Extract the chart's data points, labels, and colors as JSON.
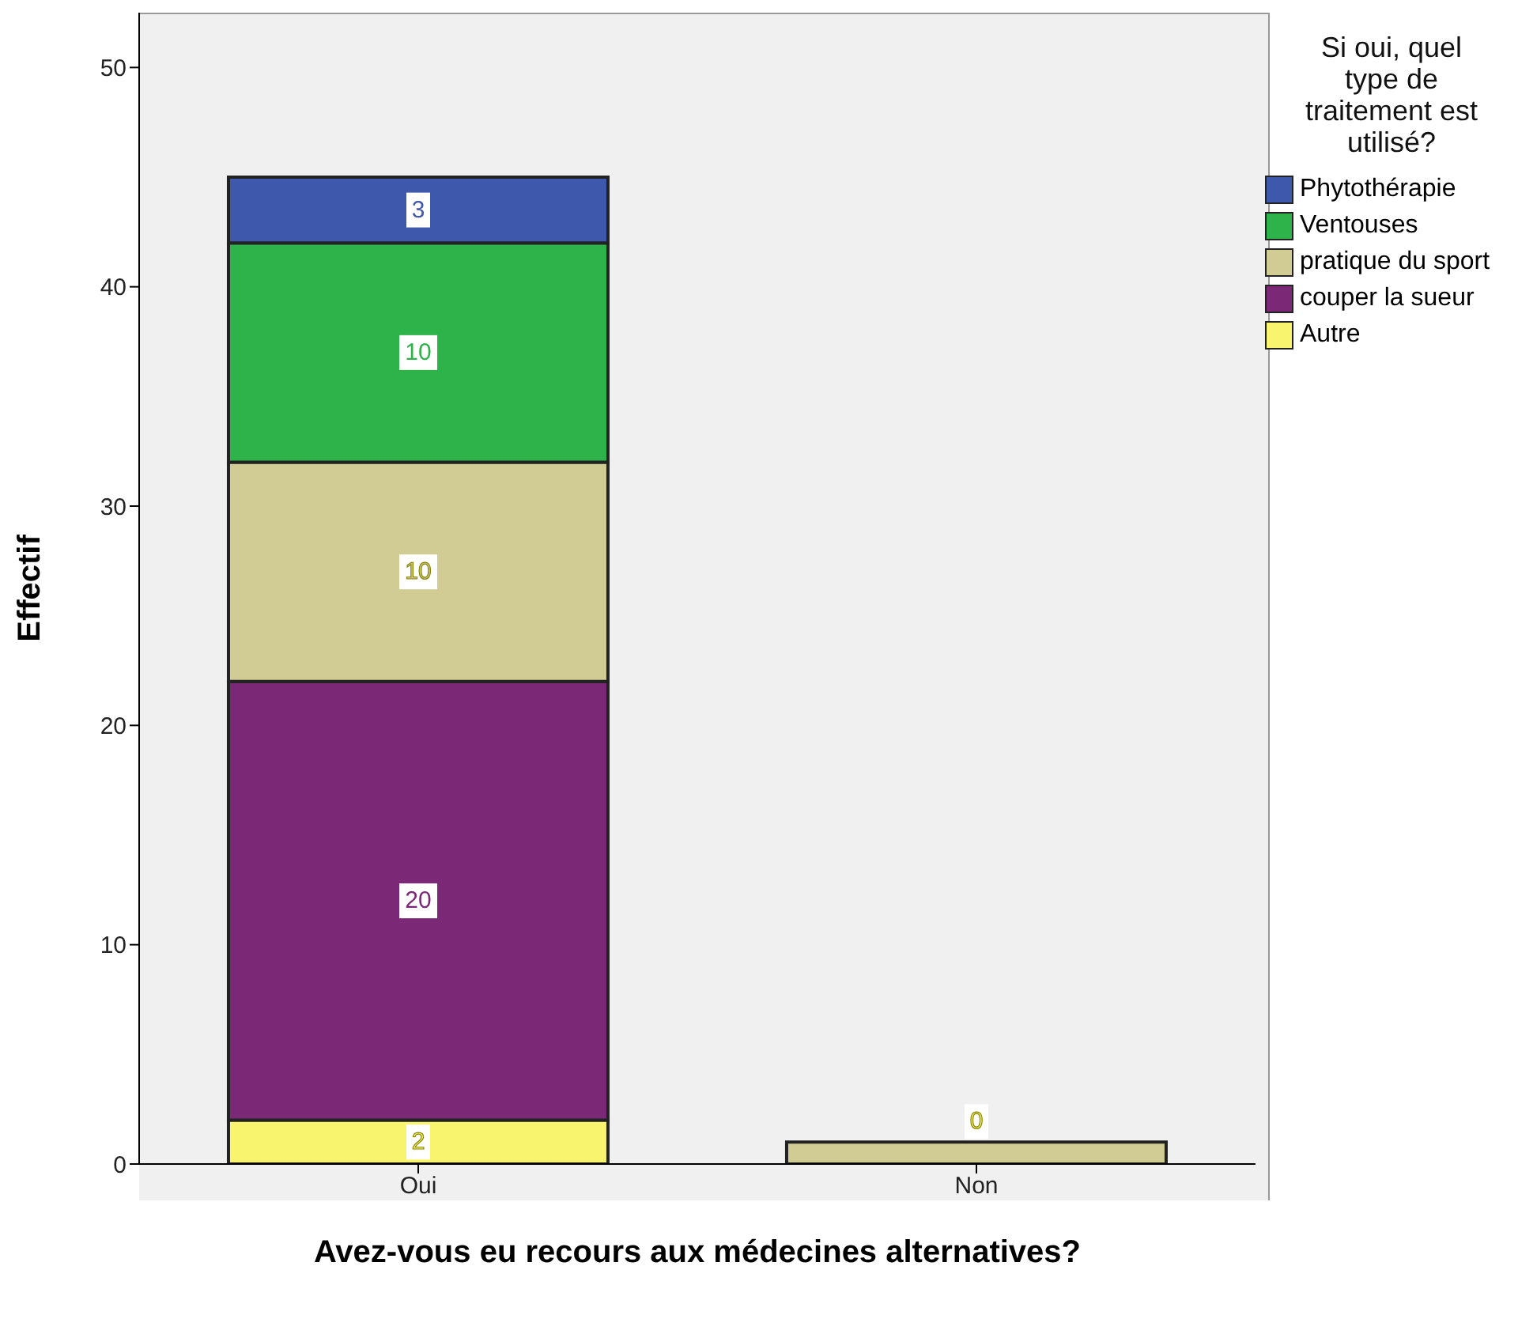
{
  "chart_data": {
    "type": "bar",
    "stacked": true,
    "xlabel": "Avez-vous eu recours aux médecines alternatives?",
    "ylabel": "Effectif",
    "legend_title": "Si oui, quel type de traitement est utilisé?",
    "legend": "right",
    "categories": [
      "Oui",
      "Non"
    ],
    "ylim": [
      0,
      52.5
    ],
    "yticks": [
      0,
      10,
      20,
      30,
      40,
      50
    ],
    "grid": false,
    "series": [
      {
        "name": "Autre",
        "color": "#f8f46e",
        "values": [
          2,
          0
        ],
        "value_labels": [
          "2",
          "0"
        ]
      },
      {
        "name": "couper la sueur",
        "color": "#7b2877",
        "values": [
          20,
          null
        ],
        "value_labels": [
          "20",
          null
        ]
      },
      {
        "name": "pratique du sport",
        "color": "#d1cc94",
        "values": [
          10,
          1
        ],
        "value_labels": [
          "10",
          null
        ]
      },
      {
        "name": "Ventouses",
        "color": "#2db34a",
        "values": [
          10,
          null
        ],
        "value_labels": [
          "10",
          null
        ]
      },
      {
        "name": "Phytothérapie",
        "color": "#3e58ac",
        "values": [
          3,
          null
        ],
        "value_labels": [
          "3",
          null
        ]
      }
    ]
  }
}
